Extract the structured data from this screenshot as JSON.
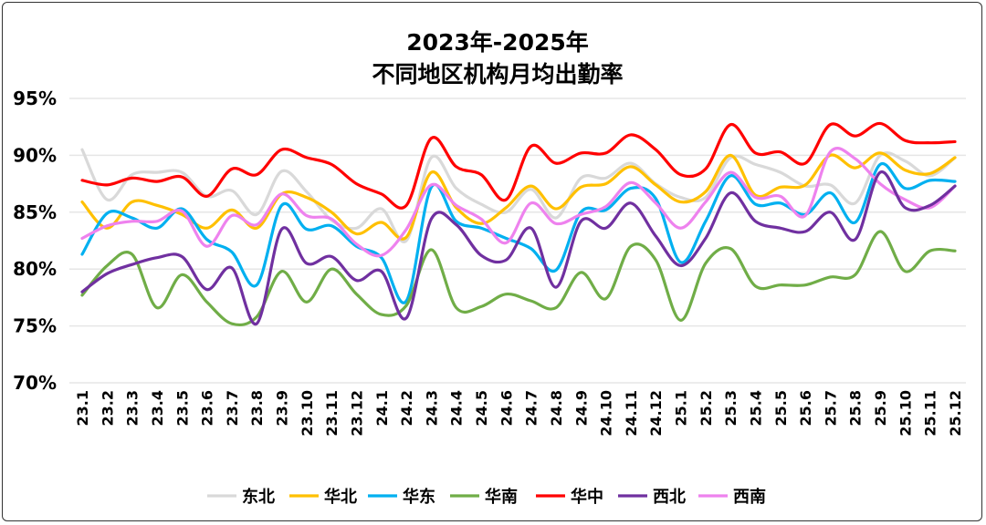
{
  "chart_data": {
    "type": "line",
    "title": "2023年-2025年\n不同地区机构月均出勤率",
    "title_lines": [
      "2023年-2025年",
      "不同地区机构月均出勤率"
    ],
    "xlabel": "",
    "ylabel": "",
    "ylim": [
      70,
      95
    ],
    "yticks": [
      "70%",
      "75%",
      "80%",
      "85%",
      "90%",
      "95%"
    ],
    "grid": true,
    "legend_position": "bottom",
    "smooth": true,
    "categories": [
      "23.1",
      "23.2",
      "23.3",
      "23.4",
      "23.5",
      "23.6",
      "23.7",
      "23.8",
      "23.9",
      "23.10",
      "23.11",
      "23.12",
      "24.1",
      "24.2",
      "24.3",
      "24.4",
      "24.5",
      "24.6",
      "24.7",
      "24.8",
      "24.9",
      "24.10",
      "24.11",
      "24.12",
      "25.1",
      "25.2",
      "25.3",
      "25.4",
      "25.5",
      "25.6",
      "25.7",
      "25.8",
      "25.9",
      "25.10",
      "25.11",
      "25.12"
    ],
    "series": [
      {
        "name": "东北",
        "color": "#d9d9d9",
        "values": [
          90.5,
          86.1,
          88.3,
          88.5,
          88.5,
          86.4,
          86.9,
          84.8,
          88.6,
          86.8,
          84.3,
          83.6,
          85.3,
          82.5,
          89.8,
          87.1,
          85.7,
          85.0,
          87.0,
          84.5,
          88.0,
          88.0,
          89.3,
          87.5,
          86.3,
          86.3,
          89.8,
          89.2,
          88.5,
          87.3,
          87.4,
          85.8,
          90.0,
          89.5,
          88.2,
          89.8
        ]
      },
      {
        "name": "华北",
        "color": "#ffc000",
        "values": [
          85.9,
          83.6,
          85.9,
          85.6,
          84.8,
          83.6,
          85.2,
          83.6,
          86.6,
          86.3,
          85.0,
          83.1,
          84.1,
          82.8,
          88.5,
          85.4,
          84.0,
          85.4,
          87.3,
          85.3,
          87.2,
          87.5,
          89.0,
          87.4,
          85.9,
          86.8,
          90.0,
          86.5,
          87.2,
          87.4,
          90.0,
          88.9,
          90.2,
          88.7,
          88.4,
          89.8
        ]
      },
      {
        "name": "华东",
        "color": "#00b0f0",
        "values": [
          81.3,
          84.9,
          84.5,
          83.6,
          85.3,
          82.6,
          81.5,
          78.6,
          85.6,
          83.5,
          83.8,
          82.0,
          81.0,
          77.2,
          87.2,
          84.2,
          83.6,
          82.7,
          81.8,
          79.9,
          85.0,
          85.2,
          87.1,
          86.2,
          80.6,
          84.2,
          88.2,
          85.7,
          85.8,
          84.8,
          86.7,
          84.1,
          89.2,
          87.1,
          87.8,
          87.7
        ]
      },
      {
        "name": "华南",
        "color": "#70ad47",
        "values": [
          77.7,
          80.3,
          81.3,
          76.6,
          79.5,
          77.1,
          75.2,
          75.8,
          79.8,
          77.1,
          80.0,
          77.8,
          76.0,
          76.8,
          81.7,
          76.6,
          76.7,
          77.8,
          77.2,
          76.6,
          79.7,
          77.4,
          82.0,
          80.8,
          75.5,
          80.5,
          81.8,
          78.5,
          78.6,
          78.6,
          79.3,
          79.5,
          83.3,
          79.8,
          81.6,
          81.6
        ]
      },
      {
        "name": "华中",
        "color": "#ff0000",
        "values": [
          87.8,
          87.4,
          88.0,
          87.7,
          88.1,
          86.4,
          88.8,
          88.3,
          90.5,
          89.8,
          89.2,
          87.5,
          86.6,
          85.6,
          91.5,
          89.0,
          88.3,
          86.1,
          90.8,
          89.3,
          90.2,
          90.2,
          91.8,
          90.5,
          88.3,
          88.8,
          92.7,
          90.2,
          90.3,
          89.3,
          92.7,
          91.7,
          92.8,
          91.3,
          91.1,
          91.2
        ]
      },
      {
        "name": "西北",
        "color": "#7030a0",
        "values": [
          78.0,
          79.6,
          80.4,
          81.0,
          81.1,
          78.2,
          80.1,
          75.2,
          83.5,
          80.5,
          81.1,
          79.0,
          79.8,
          75.7,
          84.4,
          83.9,
          81.2,
          80.8,
          83.6,
          78.4,
          84.2,
          83.6,
          85.8,
          82.9,
          80.3,
          82.7,
          86.7,
          84.2,
          83.6,
          83.3,
          85.0,
          82.6,
          88.5,
          85.4,
          85.6,
          87.3
        ]
      },
      {
        "name": "西南",
        "color": "#ee82ee",
        "values": [
          82.7,
          83.8,
          84.2,
          84.2,
          85.1,
          82.0,
          84.7,
          83.9,
          86.6,
          84.7,
          84.4,
          82.2,
          81.2,
          83.5,
          87.4,
          85.6,
          84.4,
          82.3,
          85.8,
          84.0,
          84.8,
          85.5,
          87.6,
          85.8,
          83.6,
          85.9,
          88.5,
          86.3,
          86.4,
          84.7,
          90.3,
          89.7,
          87.5,
          86.1,
          85.4,
          87.3
        ]
      }
    ]
  }
}
